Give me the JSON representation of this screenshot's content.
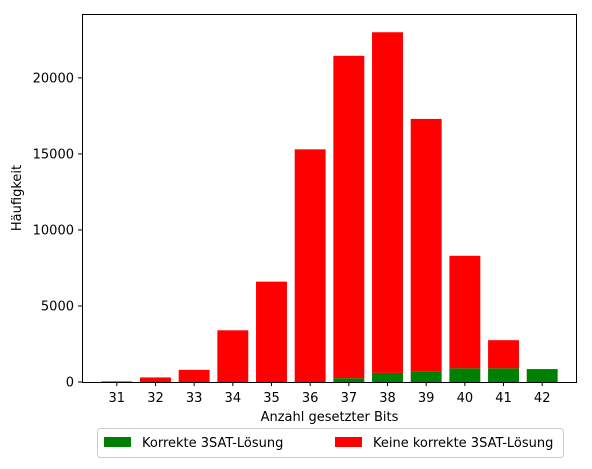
{
  "chart_data": {
    "type": "bar",
    "stacked": true,
    "title": "",
    "xlabel": "Anzahl gesetzter Bits",
    "ylabel": "Häufigkeit",
    "categories": [
      "31",
      "32",
      "33",
      "34",
      "35",
      "36",
      "37",
      "38",
      "39",
      "40",
      "41",
      "42"
    ],
    "xlim": [
      30.1,
      42.9
    ],
    "ylim": [
      0,
      24200
    ],
    "yticks": [
      0,
      5000,
      10000,
      15000,
      20000
    ],
    "grid": false,
    "legend_position": "bottom-center, outside",
    "series": [
      {
        "name": "Korrekte 3SAT-Lösung",
        "color": "#008000",
        "values": [
          0,
          0,
          0,
          0,
          0,
          0,
          250,
          600,
          700,
          900,
          900,
          850
        ]
      },
      {
        "name": "Keine korrekte 3SAT-Lösung",
        "color": "#ff0000",
        "values": [
          40,
          300,
          800,
          3400,
          6600,
          15300,
          21200,
          22400,
          16600,
          7400,
          1850,
          0
        ]
      }
    ]
  }
}
